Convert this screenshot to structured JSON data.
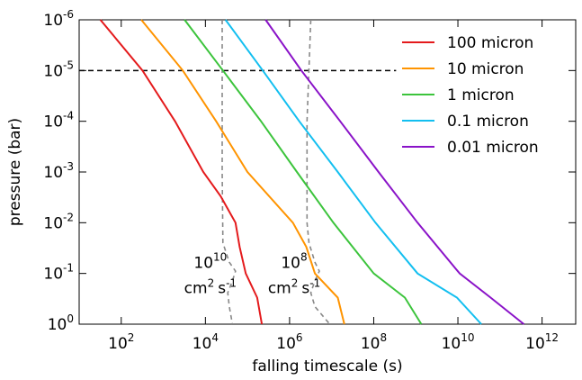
{
  "chart_data": {
    "type": "line",
    "xlabel": "falling timescale (s)",
    "ylabel": "pressure (bar)",
    "xscale": "log",
    "yscale": "log",
    "y_inverted": true,
    "xlim": [
      10,
      6300000000000.0
    ],
    "ylim": [
      1e-06,
      1
    ],
    "xticks": [
      {
        "value": 100,
        "label": {
          "base": "10",
          "exp": "2"
        }
      },
      {
        "value": 10000,
        "label": {
          "base": "10",
          "exp": "4"
        }
      },
      {
        "value": 1000000,
        "label": {
          "base": "10",
          "exp": "6"
        }
      },
      {
        "value": 100000000,
        "label": {
          "base": "10",
          "exp": "8"
        }
      },
      {
        "value": 10000000000,
        "label": {
          "base": "10",
          "exp": "10"
        }
      },
      {
        "value": 1000000000000,
        "label": {
          "base": "10",
          "exp": "12"
        }
      }
    ],
    "yticks": [
      {
        "value": 1e-06,
        "label": {
          "base": "10",
          "exp": "-6"
        }
      },
      {
        "value": 1e-05,
        "label": {
          "base": "10",
          "exp": "-5"
        }
      },
      {
        "value": 0.0001,
        "label": {
          "base": "10",
          "exp": "-4"
        }
      },
      {
        "value": 0.001,
        "label": {
          "base": "10",
          "exp": "-3"
        }
      },
      {
        "value": 0.01,
        "label": {
          "base": "10",
          "exp": "-2"
        }
      },
      {
        "value": 0.1,
        "label": {
          "base": "10",
          "exp": "-1"
        }
      },
      {
        "value": 1,
        "label": {
          "base": "10",
          "exp": "0"
        }
      }
    ],
    "legend": "upper right",
    "series": [
      {
        "name": "100 micron",
        "color": "#e41a1c",
        "x": [
          32,
          320,
          1900,
          8900,
          23000,
          52000,
          65000,
          91000,
          170000,
          220000
        ],
        "y": [
          1e-06,
          1e-05,
          0.0001,
          0.001,
          0.003,
          0.01,
          0.03,
          0.1,
          0.3,
          1
        ]
      },
      {
        "name": "10 micron",
        "color": "#ff9400",
        "x": [
          300,
          2900,
          18000,
          100000,
          1200000,
          2500000,
          4000000,
          14000000,
          20000000
        ],
        "y": [
          1e-06,
          1e-05,
          0.0001,
          0.001,
          0.01,
          0.03,
          0.1,
          0.3,
          1
        ]
      },
      {
        "name": "1 micron",
        "color": "#3cc43c",
        "x": [
          3200,
          26000,
          210000,
          1500000,
          11000000,
          100000000,
          550000000,
          1350000000
        ],
        "y": [
          1e-06,
          1e-05,
          0.0001,
          0.001,
          0.01,
          0.1,
          0.3,
          1
        ]
      },
      {
        "name": "0.1 micron",
        "color": "#13bff0",
        "x": [
          30000,
          230000,
          1700000,
          14000000,
          110000000,
          1100000000,
          9500000000,
          36000000000
        ],
        "y": [
          1e-06,
          1e-05,
          0.0001,
          0.001,
          0.01,
          0.1,
          0.3,
          1
        ]
      },
      {
        "name": "0.01 micron",
        "color": "#8a13c8",
        "x": [
          270000,
          1900000,
          16000000,
          130000000,
          1100000000,
          11000000000,
          60000000000,
          370000000000
        ],
        "y": [
          1e-06,
          1e-05,
          0.0001,
          0.001,
          0.01,
          0.1,
          0.3,
          1
        ]
      }
    ],
    "kzz_curves": [
      {
        "color": "#888888",
        "label": {
          "base": "10",
          "exp": "10"
        },
        "unit": {
          "a": "cm",
          "a_exp": "2",
          "b": "s",
          "b_exp": "-1"
        },
        "x": [
          25000,
          25000,
          26000,
          37000,
          52000,
          44000,
          34000,
          37000,
          44000
        ],
        "y": [
          1e-06,
          0.001,
          0.025,
          0.06,
          0.09,
          0.14,
          0.24,
          0.45,
          1
        ]
      },
      {
        "color": "#888888",
        "label": {
          "base": "10",
          "exp": "8"
        },
        "unit": {
          "a": "cm",
          "a_exp": "2",
          "b": "s",
          "b_exp": "-1"
        },
        "x": [
          3200000,
          2600000,
          2600000,
          2900000,
          4000000,
          5100000,
          4000000,
          3200000,
          4000000,
          9000000
        ],
        "y": [
          1e-06,
          0.0001,
          0.01,
          0.025,
          0.06,
          0.09,
          0.14,
          0.24,
          0.45,
          1
        ]
      }
    ],
    "hline": {
      "y": 1e-05,
      "xmax": 340000000,
      "color": "#000000"
    }
  }
}
